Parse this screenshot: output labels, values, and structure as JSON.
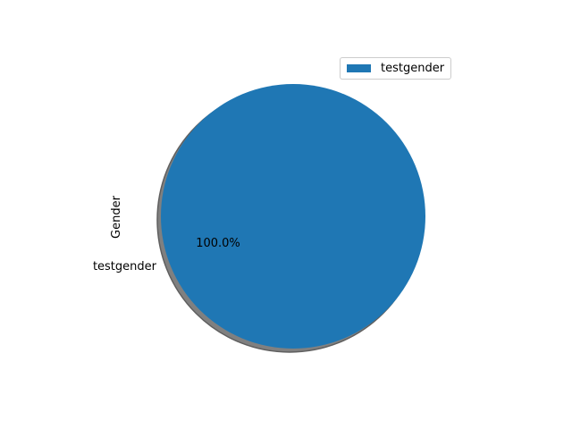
{
  "chart_data": {
    "type": "pie",
    "ylabel": "Gender",
    "slices": [
      {
        "label": "testgender",
        "value": 1,
        "percent_label": "100.0%",
        "color": "#1f77b4"
      }
    ],
    "shadow": true,
    "legend": {
      "placement": "top-right",
      "entries": [
        "testgender"
      ]
    }
  },
  "colors": {
    "slice": "#1f77b4",
    "shadow": "#808080",
    "shadow_edge": "#5f5f5f"
  }
}
